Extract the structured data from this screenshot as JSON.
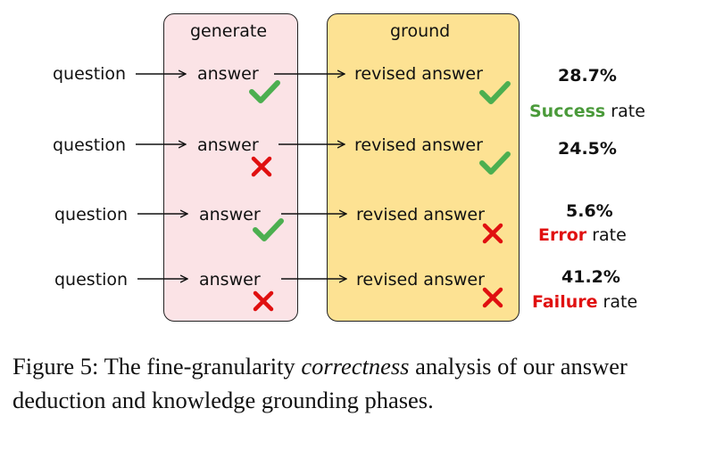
{
  "headers": {
    "generate": "generate",
    "ground": "ground"
  },
  "rows": [
    {
      "question": "question",
      "answer": "answer",
      "answer_mark": "check",
      "revised": "revised answer",
      "revised_mark": "check"
    },
    {
      "question": "question",
      "answer": "answer",
      "answer_mark": "cross",
      "revised": "revised answer",
      "revised_mark": "check"
    },
    {
      "question": "question",
      "answer": "answer",
      "answer_mark": "check",
      "revised": "revised answer",
      "revised_mark": "cross"
    },
    {
      "question": "question",
      "answer": "answer",
      "answer_mark": "cross",
      "revised": "revised answer",
      "revised_mark": "cross"
    }
  ],
  "results": [
    {
      "percent": "28.7%",
      "keyword": "Success",
      "suffix": " rate",
      "keyword_color": "#4a9a3a"
    },
    {
      "percent": "24.5%",
      "keyword": "",
      "suffix": "",
      "keyword_color": ""
    },
    {
      "percent": "5.6%",
      "keyword": "Error",
      "suffix": " rate",
      "keyword_color": "#e01010"
    },
    {
      "percent": "41.2%",
      "keyword": "Failure",
      "suffix": " rate",
      "keyword_color": "#e01010"
    }
  ],
  "caption": {
    "prefix": "Figure 5: The fine-granularity ",
    "italic": "correctness",
    "suffix": " analysis of our answer deduction and knowledge grounding phases."
  },
  "colors": {
    "check": "#4caf50",
    "cross": "#e01010",
    "generate_panel": "#fbe3e6",
    "ground_panel": "#fde293"
  }
}
